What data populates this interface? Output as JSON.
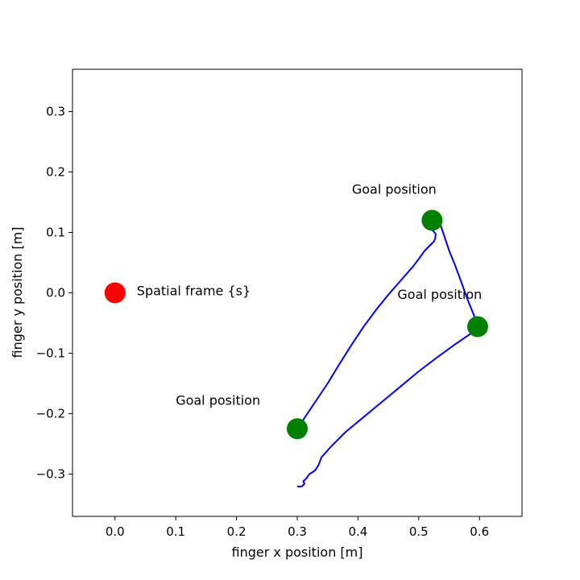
{
  "chart_data": {
    "type": "scatter",
    "xlabel": "finger x position [m]",
    "ylabel": "finger y position [m]",
    "xlim": [
      -0.07,
      0.67
    ],
    "ylim": [
      -0.37,
      0.37
    ],
    "xticks": [
      "0.0",
      "0.1",
      "0.2",
      "0.3",
      "0.4",
      "0.5",
      "0.6"
    ],
    "yticks": [
      "−0.3",
      "−0.2",
      "−0.1",
      "0.0",
      "0.1",
      "0.2",
      "0.3"
    ],
    "grid": false,
    "trajectory": {
      "color": "#0000ff",
      "x": [
        0.3,
        0.31,
        0.33,
        0.35,
        0.37,
        0.39,
        0.41,
        0.43,
        0.45,
        0.47,
        0.49,
        0.5,
        0.51,
        0.52,
        0.525,
        0.527,
        0.528,
        0.526,
        0.523,
        0.525,
        0.53,
        0.534,
        0.54,
        0.55,
        0.56,
        0.57,
        0.58,
        0.59,
        0.597,
        0.585,
        0.56,
        0.53,
        0.5,
        0.47,
        0.44,
        0.41,
        0.38,
        0.355,
        0.34,
        0.335,
        0.33,
        0.325,
        0.32,
        0.315,
        0.31,
        0.312,
        0.308,
        0.303,
        0.3
      ],
      "y": [
        -0.225,
        -0.21,
        -0.18,
        -0.15,
        -0.117,
        -0.085,
        -0.055,
        -0.028,
        -0.003,
        0.02,
        0.043,
        0.056,
        0.07,
        0.08,
        0.085,
        0.09,
        0.097,
        0.1,
        0.103,
        0.106,
        0.113,
        0.118,
        0.1,
        0.07,
        0.045,
        0.018,
        -0.01,
        -0.035,
        -0.055,
        -0.068,
        -0.085,
        -0.107,
        -0.13,
        -0.155,
        -0.18,
        -0.205,
        -0.23,
        -0.255,
        -0.272,
        -0.285,
        -0.293,
        -0.297,
        -0.3,
        -0.307,
        -0.312,
        -0.316,
        -0.32,
        -0.321,
        -0.32
      ]
    },
    "origin_point": {
      "x": 0.0,
      "y": 0.0,
      "color": "#ff0000",
      "label": "Spatial frame {s}"
    },
    "goal_points": [
      {
        "x": 0.3,
        "y": -0.225,
        "label": "Goal position",
        "label_x": 0.1,
        "label_y": -0.177
      },
      {
        "x": 0.522,
        "y": 0.12,
        "label": "Goal position",
        "label_x": 0.39,
        "label_y": 0.172
      },
      {
        "x": 0.597,
        "y": -0.056,
        "label": "Goal position",
        "label_x": 0.465,
        "label_y": -0.002
      }
    ],
    "goal_color": "#008000"
  }
}
